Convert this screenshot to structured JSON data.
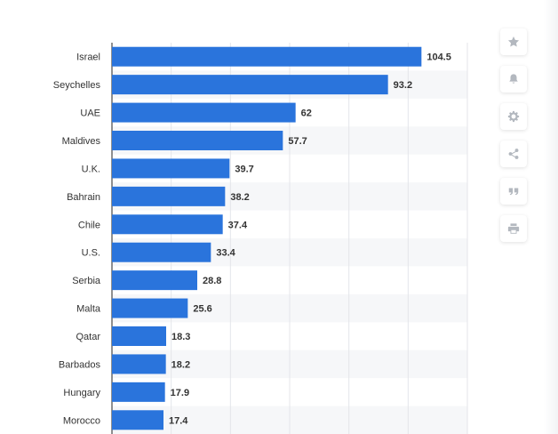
{
  "chart_data": {
    "type": "bar",
    "orientation": "horizontal",
    "categories": [
      "Israel",
      "Seychelles",
      "UAE",
      "Maldives",
      "U.K.",
      "Bahrain",
      "Chile",
      "U.S.",
      "Serbia",
      "Malta",
      "Qatar",
      "Barbados",
      "Hungary",
      "Morocco"
    ],
    "values": [
      104.5,
      93.2,
      62,
      57.7,
      39.7,
      38.2,
      37.4,
      33.4,
      28.8,
      25.6,
      18.3,
      18.2,
      17.9,
      17.4
    ],
    "value_labels": [
      "104.5",
      "93.2",
      "62",
      "57.7",
      "39.7",
      "38.2",
      "37.4",
      "33.4",
      "28.8",
      "25.6",
      "18.3",
      "18.2",
      "17.9",
      "17.4"
    ],
    "xlim": [
      0,
      120
    ],
    "gridlines": [
      0,
      20,
      40,
      60,
      80,
      100,
      120
    ],
    "grid": true,
    "bar_color": "#2a74dc",
    "band_color": "#f6f7f9",
    "title": "",
    "xlabel": "",
    "ylabel": ""
  },
  "toolbar": {
    "icons": [
      "star-icon",
      "bell-icon",
      "gear-icon",
      "share-icon",
      "quote-icon",
      "print-icon"
    ]
  }
}
